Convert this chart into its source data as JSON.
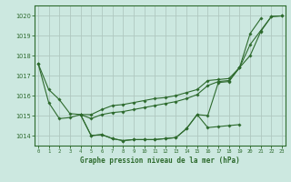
{
  "xlabel": "Graphe pression niveau de la mer (hPa)",
  "background_color": "#cce8e0",
  "grid_color": "#b0c8c0",
  "line_color": "#2d6a2d",
  "ylim": [
    1013.5,
    1020.5
  ],
  "xlim": [
    -0.3,
    23.3
  ],
  "yticks": [
    1014,
    1015,
    1016,
    1017,
    1018,
    1019,
    1020
  ],
  "xticks": [
    0,
    1,
    2,
    3,
    4,
    5,
    6,
    7,
    8,
    9,
    10,
    11,
    12,
    13,
    14,
    15,
    16,
    17,
    18,
    19,
    20,
    21,
    22,
    23
  ],
  "series": [
    [
      1017.6,
      1016.3,
      1015.8,
      1015.1,
      1015.05,
      1014.0,
      1014.05,
      1013.85,
      1013.75,
      1013.8,
      1013.8,
      1013.8,
      1013.85,
      1013.9,
      1014.35,
      1015.05,
      1014.4,
      1014.45,
      1014.5,
      1014.55,
      null,
      null,
      null,
      null
    ],
    [
      1017.6,
      1015.65,
      1014.85,
      1014.9,
      1015.05,
      1014.0,
      1014.05,
      1013.85,
      1013.75,
      1013.8,
      1013.8,
      1013.8,
      1013.85,
      1013.9,
      1014.35,
      1015.05,
      1015.0,
      1016.65,
      1016.7,
      1017.4,
      1019.1,
      1019.85,
      null,
      null
    ],
    [
      null,
      null,
      null,
      null,
      1015.05,
      1015.05,
      1015.3,
      1015.5,
      1015.55,
      1015.65,
      1015.75,
      1015.85,
      1015.9,
      1016.0,
      1016.15,
      1016.3,
      1016.75,
      1016.8,
      1016.85,
      1017.4,
      1018.0,
      1019.2,
      1019.95,
      1019.98
    ],
    [
      null,
      null,
      null,
      null,
      1015.05,
      1014.85,
      1015.05,
      1015.15,
      1015.2,
      1015.3,
      1015.4,
      1015.5,
      1015.6,
      1015.7,
      1015.85,
      1016.05,
      1016.5,
      1016.7,
      1016.75,
      1017.4,
      1018.55,
      1019.25,
      1019.95,
      1019.98
    ]
  ]
}
